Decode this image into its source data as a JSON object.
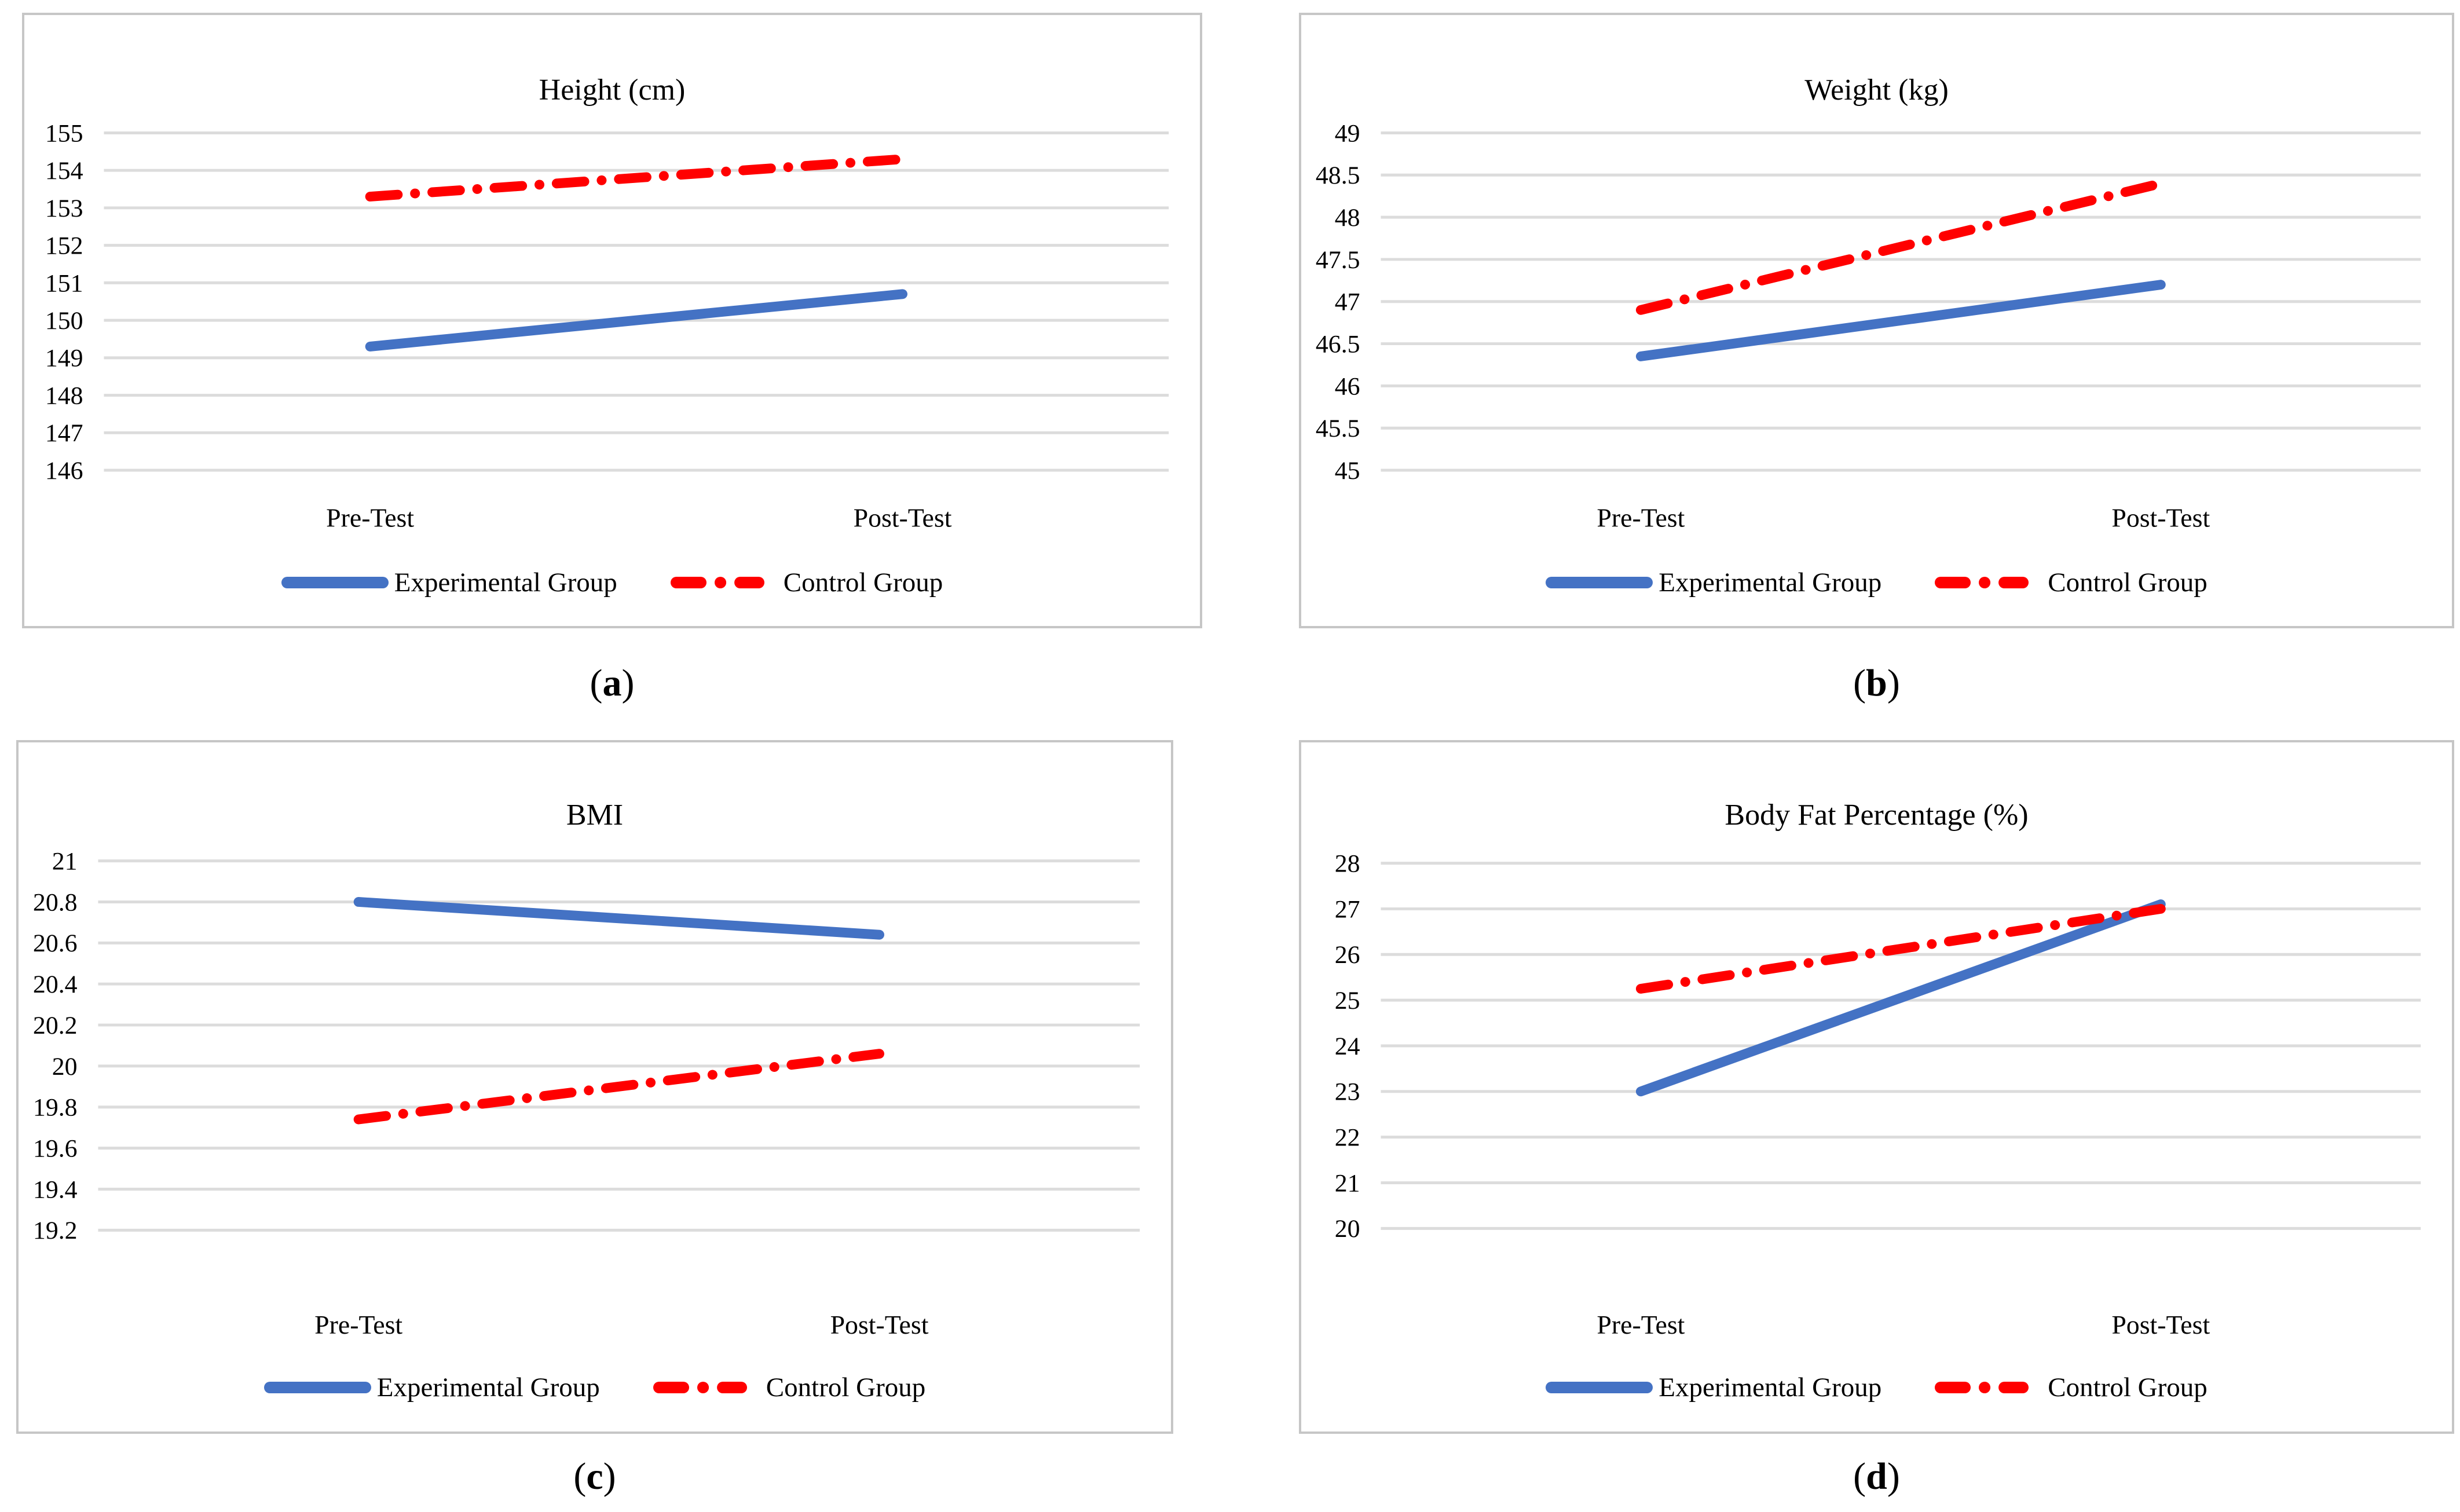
{
  "figure": {
    "background_color": "#FFFFFF",
    "panel_border_color": "#C6C6C6",
    "gridline_color": "#DCDCDC",
    "text_color": "#000000",
    "accent_blue": "#4472C4",
    "accent_red": "#FF0000",
    "caption_open": "(",
    "caption_close": ")",
    "legend_items": [
      {
        "label": "Experimental Group",
        "color": "#4472C4",
        "style": "solid"
      },
      {
        "label": "Control Group",
        "color": "#FF0000",
        "style": "dash-dot"
      }
    ]
  },
  "chart_data": [
    {
      "type": "line",
      "panel": "a",
      "caption_label": "a",
      "title": "Height (cm)",
      "xlabel": "",
      "ylabel": "",
      "categories": [
        "Pre-Test",
        "Post-Test"
      ],
      "ylim": [
        146,
        155
      ],
      "ystep": 1,
      "grid": true,
      "legend_position": "bottom",
      "series": [
        {
          "name": "Experimental Group",
          "color": "#4472C4",
          "style": "solid",
          "values": [
            149.3,
            150.7
          ]
        },
        {
          "name": "Control Group",
          "color": "#FF0000",
          "style": "dash-dot",
          "values": [
            153.3,
            154.3
          ]
        }
      ]
    },
    {
      "type": "line",
      "panel": "b",
      "caption_label": "b",
      "title": "Weight (kg)",
      "xlabel": "",
      "ylabel": "",
      "categories": [
        "Pre-Test",
        "Post-Test"
      ],
      "ylim": [
        45,
        49
      ],
      "ystep": 0.5,
      "grid": true,
      "legend_position": "bottom",
      "series": [
        {
          "name": "Experimental Group",
          "color": "#4472C4",
          "style": "solid",
          "values": [
            46.35,
            47.2
          ]
        },
        {
          "name": "Control Group",
          "color": "#FF0000",
          "style": "dash-dot",
          "values": [
            46.9,
            48.4
          ]
        }
      ]
    },
    {
      "type": "line",
      "panel": "c",
      "caption_label": "c",
      "title": "BMI",
      "xlabel": "",
      "ylabel": "",
      "categories": [
        "Pre-Test",
        "Post-Test"
      ],
      "ylim": [
        19.2,
        21
      ],
      "ystep": 0.2,
      "grid": true,
      "legend_position": "bottom",
      "series": [
        {
          "name": "Experimental Group",
          "color": "#4472C4",
          "style": "solid",
          "values": [
            20.8,
            20.64
          ]
        },
        {
          "name": "Control Group",
          "color": "#FF0000",
          "style": "dash-dot",
          "values": [
            19.74,
            20.06
          ]
        }
      ]
    },
    {
      "type": "line",
      "panel": "d",
      "caption_label": "d",
      "title": "Body Fat Percentage (%)",
      "xlabel": "",
      "ylabel": "",
      "categories": [
        "Pre-Test",
        "Post-Test"
      ],
      "ylim": [
        20,
        28
      ],
      "ystep": 1,
      "grid": true,
      "legend_position": "bottom",
      "series": [
        {
          "name": "Experimental Group",
          "color": "#4472C4",
          "style": "solid",
          "values": [
            23.0,
            27.1
          ]
        },
        {
          "name": "Control Group",
          "color": "#FF0000",
          "style": "dash-dot",
          "values": [
            25.25,
            27.0
          ]
        }
      ]
    }
  ]
}
